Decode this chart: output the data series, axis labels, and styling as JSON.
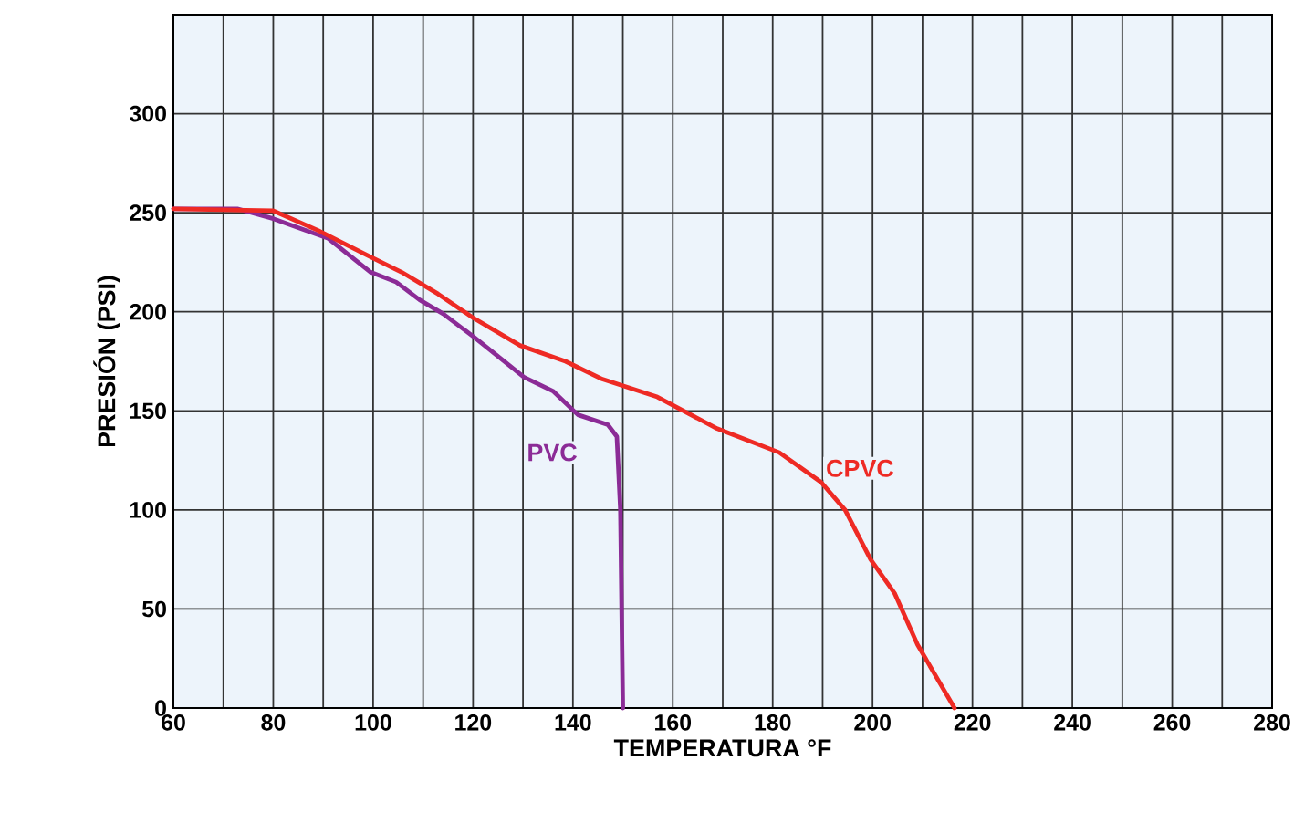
{
  "chart_data": {
    "type": "line",
    "xlabel": "TEMPERATURA °F",
    "ylabel": "PRESIÓN (PSI)",
    "xlim": [
      60,
      280
    ],
    "ylim": [
      0,
      350
    ],
    "xticks": [
      60,
      {
        "value": 70,
        "label": null
      },
      80,
      {
        "value": 90,
        "label": null
      },
      100,
      {
        "value": 110,
        "label": null
      },
      120,
      {
        "value": 130,
        "label": null
      },
      140,
      {
        "value": 150,
        "label": null
      },
      160,
      {
        "value": 170,
        "label": null
      },
      180,
      {
        "value": 190,
        "label": null
      },
      200,
      {
        "value": 210,
        "label": null
      },
      220,
      {
        "value": 230,
        "label": null
      },
      240,
      {
        "value": 250,
        "label": null
      },
      260,
      {
        "value": 270,
        "label": null
      },
      280
    ],
    "yticks": [
      0,
      50,
      100,
      150,
      200,
      250,
      300
    ],
    "grid": true,
    "legend": false,
    "marker": "none",
    "line_style": "solid",
    "series": [
      {
        "name": "PVC",
        "color": "#8b2b96",
        "x": [
          60,
          72.8,
          80,
          91,
          99.5,
          104.6,
          109.3,
          114,
          120.3,
          130.2,
          136,
          141,
          147,
          148.8,
          149.5,
          150
        ],
        "values": [
          252,
          252,
          247,
          237,
          220,
          215,
          206,
          199,
          187,
          167,
          160,
          148,
          143,
          137,
          100,
          0
        ]
      },
      {
        "name": "CPVC",
        "color": "#ee2a24",
        "x": [
          60,
          80,
          89,
          98.4,
          105.7,
          113,
          120,
          129.4,
          138.5,
          145.9,
          156.9,
          168.9,
          181.3,
          189.7,
          194.5,
          199.6,
          204.4,
          209,
          216.4
        ],
        "values": [
          252,
          251,
          241,
          229,
          220,
          209,
          197,
          183,
          175,
          166,
          157,
          141,
          129,
          114,
          100,
          75,
          58,
          32,
          0
        ]
      }
    ]
  }
}
